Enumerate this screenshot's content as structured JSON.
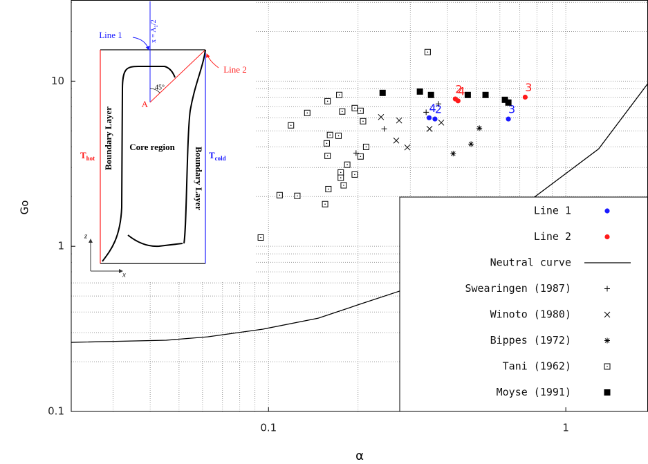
{
  "chart_data": {
    "type": "scatter",
    "x_label": "α",
    "y_label": "Go",
    "xscale": "log",
    "yscale": "log",
    "xlim": [
      0.0217,
      1.89
    ],
    "ylim": [
      0.1,
      31
    ],
    "xticks": [
      0.1,
      1
    ],
    "yticks": [
      0.1,
      1,
      10
    ],
    "xminorticks": [
      0.03,
      0.04,
      0.05,
      0.06,
      0.07,
      0.08,
      0.09,
      0.2,
      0.3,
      0.4,
      0.5,
      0.6,
      0.7,
      0.8,
      0.9
    ],
    "yminorticks": [
      0.2,
      0.3,
      0.4,
      0.5,
      0.6,
      0.7,
      0.8,
      0.9,
      2,
      3,
      4,
      5,
      6,
      7,
      8,
      9,
      20,
      30
    ],
    "grid": true,
    "legend": "lower right",
    "series": [
      {
        "name": "Line 1",
        "color": "#1a1aff",
        "marker": "circle",
        "x": [
          0.347,
          0.363,
          0.641
        ],
        "values": [
          6.0,
          5.9,
          5.9
        ],
        "point_labels": [
          "4",
          "2",
          "3"
        ]
      },
      {
        "name": "Line 2",
        "color": "#ff1a1a",
        "marker": "circle",
        "x": [
          0.425,
          0.434,
          0.73
        ],
        "values": [
          7.8,
          7.6,
          8.0
        ],
        "point_labels": [
          "2",
          "4",
          "3"
        ]
      },
      {
        "name": "Neutral curve",
        "color": "#000000",
        "marker": "line",
        "x": [
          0.0217,
          0.0453,
          0.0624,
          0.0958,
          0.147,
          0.203,
          0.28,
          0.531,
          0.774,
          1.29,
          1.89
        ],
        "values": [
          0.262,
          0.27,
          0.283,
          0.315,
          0.367,
          0.446,
          0.54,
          1.06,
          1.95,
          3.89,
          9.7
        ]
      },
      {
        "name": "Swearingen (1987)",
        "color": "#000000",
        "marker": "plus",
        "x": [
          0.373,
          0.339,
          0.245,
          0.197
        ],
        "values": [
          7.28,
          6.48,
          5.14,
          3.67
        ]
      },
      {
        "name": "Winoto (1980)",
        "color": "#000000",
        "marker": "cross",
        "x": [
          0.239,
          0.275,
          0.381,
          0.348,
          0.269,
          0.293
        ],
        "values": [
          6.06,
          5.78,
          5.61,
          5.14,
          4.37,
          3.97
        ]
      },
      {
        "name": "Bippes (1972)",
        "color": "#000000",
        "marker": "star",
        "x": [
          0.512,
          0.48,
          0.418
        ],
        "values": [
          5.19,
          4.16,
          3.64
        ]
      },
      {
        "name": "Tani (1962)",
        "color": "#000000",
        "marker": "dotted-square",
        "x": [
          0.343,
          0.173,
          0.158,
          0.135,
          0.195,
          0.177,
          0.204,
          0.208,
          0.119,
          0.161,
          0.172,
          0.213,
          0.157,
          0.204,
          0.158,
          0.184,
          0.175,
          0.175,
          0.195,
          0.179,
          0.159,
          0.109,
          0.125,
          0.155,
          0.0942
        ],
        "values": [
          15.0,
          8.25,
          7.56,
          6.42,
          6.87,
          6.55,
          6.61,
          5.72,
          5.4,
          4.72,
          4.67,
          4.0,
          4.2,
          3.5,
          3.53,
          3.12,
          2.8,
          2.6,
          2.72,
          2.34,
          2.22,
          2.04,
          2.02,
          1.8,
          1.13
        ]
      },
      {
        "name": "Moyse (1991)",
        "color": "#000000",
        "marker": "square",
        "x": [
          0.242,
          0.323,
          0.352,
          0.468,
          0.537,
          0.624,
          0.641
        ],
        "values": [
          8.49,
          8.65,
          8.25,
          8.25,
          8.25,
          7.71,
          7.42
        ]
      }
    ],
    "inset": {
      "line1": "Line 1",
      "line2": "Line 2",
      "x_eq": [
        "x = A",
        "1",
        "/2"
      ],
      "point": "A",
      "angle": "45°",
      "left_layer": "Boundary Layer",
      "core": "Core region",
      "right_layer": "Boundary Layer",
      "t_hot": [
        "T",
        "hot"
      ],
      "t_cold": [
        "T",
        "cold"
      ],
      "z_axis": "z",
      "x_axis": "x"
    }
  }
}
